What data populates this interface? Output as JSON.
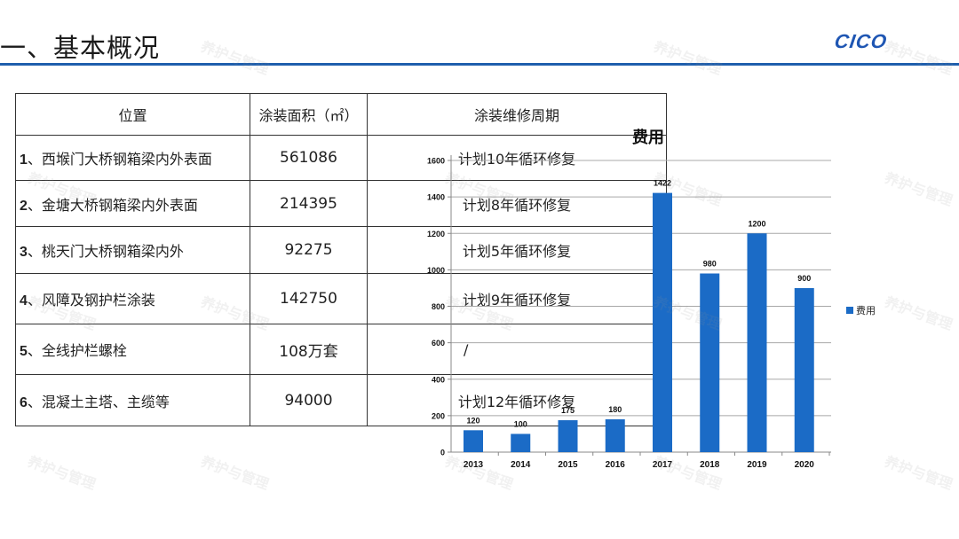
{
  "header": {
    "title": "一、基本概况",
    "logo": "CICO"
  },
  "table": {
    "headers": [
      "位置",
      "涂装面积（㎡）",
      "涂装维修周期"
    ],
    "rows": [
      {
        "num": "1",
        "location": "、西堠门大桥钢箱梁内外表面",
        "area": "561086",
        "cycle": "计划10年循环修复"
      },
      {
        "num": "2",
        "location": "、金塘大桥钢箱梁内外表面",
        "area": "214395",
        "cycle": "计划8年循环修复"
      },
      {
        "num": "3",
        "location": "、桃天门大桥钢箱梁内外",
        "area": "92275",
        "cycle": "计划5年循环修复"
      },
      {
        "num": "4",
        "location": "、风障及钢护栏涂装",
        "area": "142750",
        "cycle": "计划9年循环修复"
      },
      {
        "num": "5",
        "location": "、全线护栏螺栓",
        "area": "108万套",
        "cycle": "/"
      },
      {
        "num": "6",
        "location": "、混凝土主塔、主缆等",
        "area": "94000",
        "cycle": "计划12年循环修复"
      }
    ]
  },
  "chart_data": {
    "type": "bar",
    "title": "费用",
    "categories": [
      "2013",
      "2014",
      "2015",
      "2016",
      "2017",
      "2018",
      "2019",
      "2020"
    ],
    "series": [
      {
        "name": "费用",
        "values": [
          120,
          100,
          175,
          180,
          1422,
          980,
          1200,
          900
        ],
        "color": "#1b6bc6"
      }
    ],
    "yticks": [
      0,
      200,
      400,
      600,
      800,
      1000,
      1200,
      1400,
      1600
    ],
    "ylim": [
      0,
      1600
    ],
    "xlabel": "",
    "ylabel": "",
    "grid": true,
    "legend_position": "right",
    "data_labels": true
  },
  "watermark": "养护与管理",
  "colors": {
    "accent": "#1f5fad",
    "bar": "#1b6bc6"
  }
}
